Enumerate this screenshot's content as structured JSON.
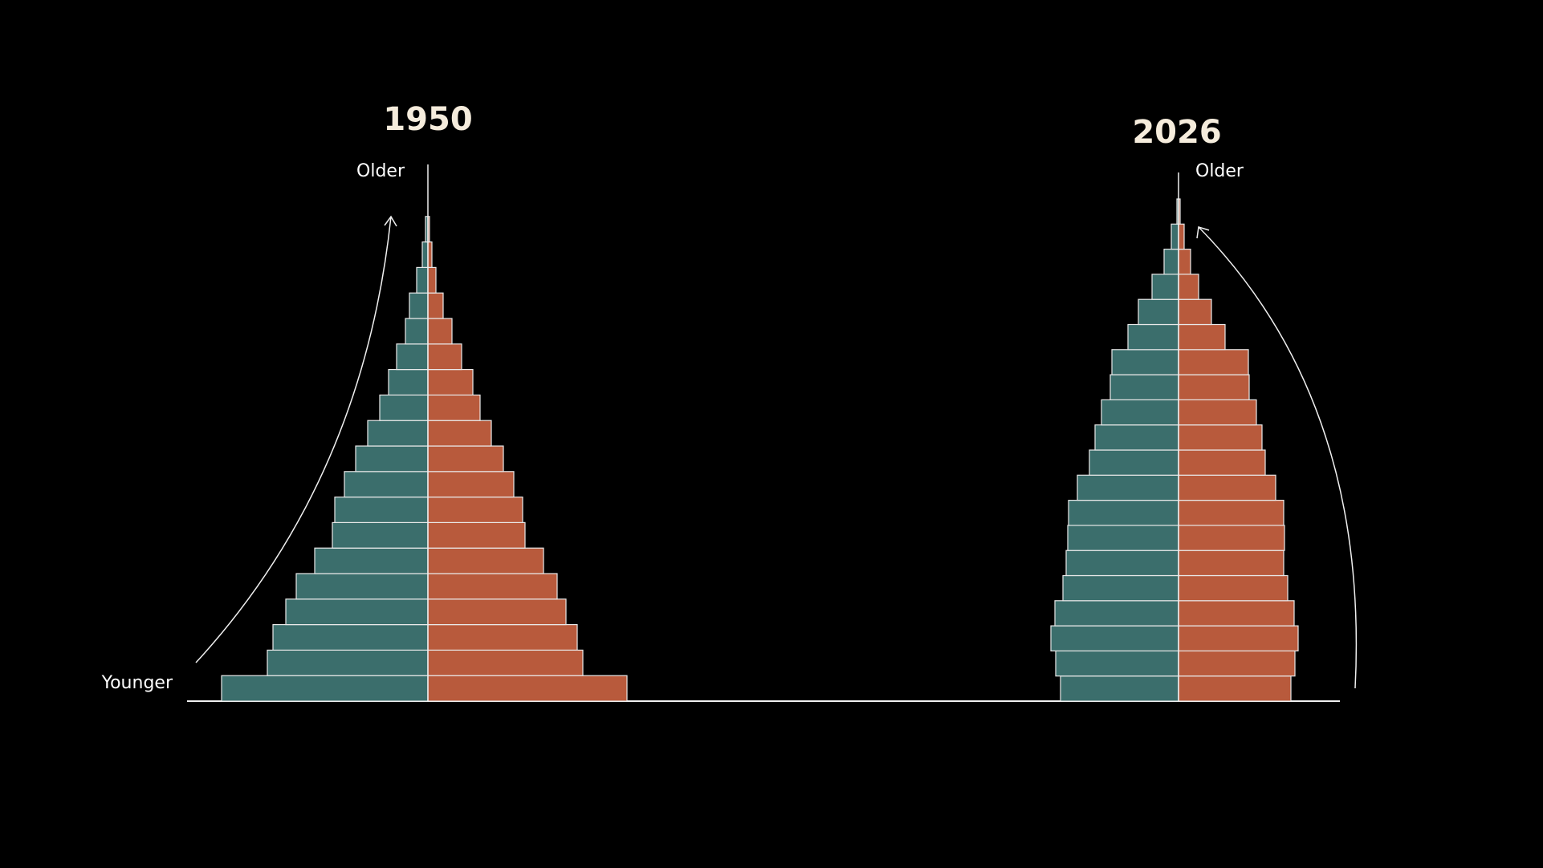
{
  "chart_data": [
    {
      "type": "bar",
      "title": "1950",
      "labels": {
        "top": "Older",
        "bottom": "Younger"
      },
      "series": [
        {
          "values": [
            257,
            200,
            193,
            177,
            164,
            141,
            119,
            116,
            104,
            90,
            75,
            60,
            49,
            39,
            28,
            23,
            14,
            7,
            3
          ]
        },
        {
          "values": [
            248,
            193,
            186,
            172,
            161,
            144,
            121,
            118,
            107,
            94,
            79,
            65,
            56,
            42,
            30,
            19,
            10,
            5,
            2
          ]
        }
      ],
      "colors": {
        "left": "#3b6e6c",
        "right": "#b85a3c",
        "outline": "#e9e9e9"
      }
    },
    {
      "type": "bar",
      "title": "2026",
      "labels": {
        "top": "Older"
      },
      "series": [
        {
          "values": [
            147,
            153,
            159,
            154,
            144,
            140,
            138,
            137,
            126,
            111,
            104,
            96,
            85,
            83,
            63,
            50,
            33,
            18,
            9,
            2
          ]
        },
        {
          "values": [
            140,
            145,
            149,
            144,
            136,
            131,
            132,
            131,
            121,
            108,
            104,
            97,
            88,
            87,
            58,
            41,
            25,
            15,
            7,
            2
          ]
        }
      ],
      "colors": {
        "left": "#3b6e6c",
        "right": "#b85a3c",
        "outline": "#e9e9e9"
      }
    }
  ]
}
